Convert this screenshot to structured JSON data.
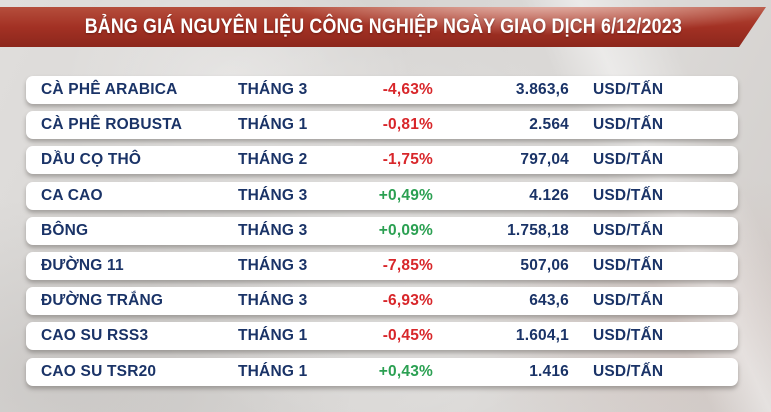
{
  "header": {
    "title": "BẢNG GIÁ NGUYÊN LIỆU CÔNG NGHIỆP NGÀY GIAO DỊCH 6/12/2023"
  },
  "colors": {
    "banner_red": "#a33124",
    "text_navy": "#1a3367",
    "down_red": "#d8262a",
    "up_green": "#2ba052",
    "row_bg": "#ffffff",
    "page_bg": "#d8d6d4"
  },
  "chart_data": {
    "type": "table",
    "title": "BẢNG GIÁ NGUYÊN LIỆU CÔNG NGHIỆP NGÀY GIAO DỊCH 6/12/2023",
    "columns": [
      "commodity",
      "contract_month",
      "percent_change",
      "price",
      "unit"
    ],
    "rows": [
      [
        "CÀ PHÊ ARABICA",
        "THÁNG 3",
        "-4,63%",
        "3.863,6",
        "USD/TẤN"
      ],
      [
        "CÀ PHÊ ROBUSTA",
        "THÁNG 1",
        "-0,81%",
        "2.564",
        "USD/TẤN"
      ],
      [
        "DẦU CỌ THÔ",
        "THÁNG 2",
        "-1,75%",
        "797,04",
        "USD/TẤN"
      ],
      [
        "CA CAO",
        "THÁNG 3",
        "+0,49%",
        "4.126",
        "USD/TẤN"
      ],
      [
        "BÔNG",
        "THÁNG 3",
        "+0,09%",
        "1.758,18",
        "USD/TẤN"
      ],
      [
        "ĐƯỜNG 11",
        "THÁNG 3",
        "-7,85%",
        "507,06",
        "USD/TẤN"
      ],
      [
        "ĐƯỜNG TRẮNG",
        "THÁNG 3",
        "-6,93%",
        "643,6",
        "USD/TẤN"
      ],
      [
        "CAO SU RSS3",
        "THÁNG 1",
        "-0,45%",
        "1.604,1",
        "USD/TẤN"
      ],
      [
        "CAO SU TSR20",
        "THÁNG 1",
        "+0,43%",
        "1.416",
        "USD/TẤN"
      ]
    ]
  },
  "table": {
    "rows": [
      {
        "name": "CÀ PHÊ ARABICA",
        "month": "THÁNG 3",
        "change": "-4,63%",
        "direction": "down",
        "price": "3.863,6",
        "unit": "USD/TẤN"
      },
      {
        "name": "CÀ PHÊ ROBUSTA",
        "month": "THÁNG 1",
        "change": "-0,81%",
        "direction": "down",
        "price": "2.564",
        "unit": "USD/TẤN"
      },
      {
        "name": "DẦU CỌ THÔ",
        "month": "THÁNG 2",
        "change": "-1,75%",
        "direction": "down",
        "price": "797,04",
        "unit": "USD/TẤN"
      },
      {
        "name": "CA CAO",
        "month": "THÁNG 3",
        "change": "+0,49%",
        "direction": "up",
        "price": "4.126",
        "unit": "USD/TẤN"
      },
      {
        "name": "BÔNG",
        "month": "THÁNG 3",
        "change": "+0,09%",
        "direction": "up",
        "price": "1.758,18",
        "unit": "USD/TẤN"
      },
      {
        "name": "ĐƯỜNG 11",
        "month": "THÁNG 3",
        "change": "-7,85%",
        "direction": "down",
        "price": "507,06",
        "unit": "USD/TẤN"
      },
      {
        "name": "ĐƯỜNG TRẮNG",
        "month": "THÁNG 3",
        "change": "-6,93%",
        "direction": "down",
        "price": "643,6",
        "unit": "USD/TẤN"
      },
      {
        "name": "CAO SU RSS3",
        "month": "THÁNG 1",
        "change": "-0,45%",
        "direction": "down",
        "price": "1.604,1",
        "unit": "USD/TẤN"
      },
      {
        "name": "CAO SU TSR20",
        "month": "THÁNG 1",
        "change": "+0,43%",
        "direction": "up",
        "price": "1.416",
        "unit": "USD/TẤN"
      }
    ]
  }
}
